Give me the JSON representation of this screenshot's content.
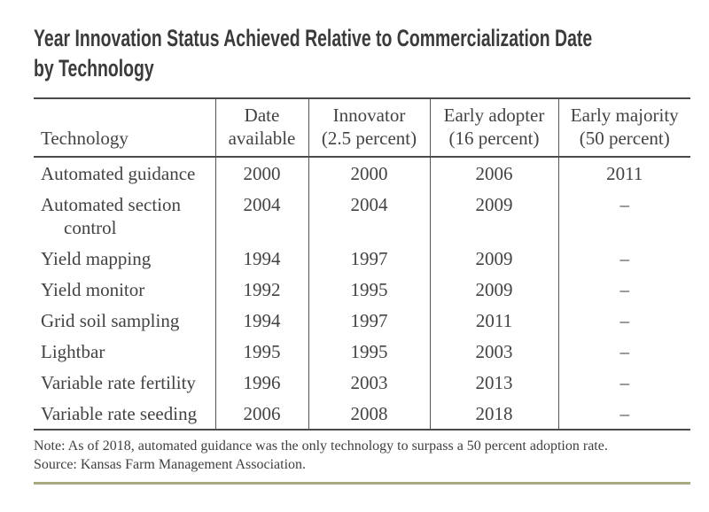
{
  "title": {
    "lines": [
      "Year Innovation Status Achieved Relative to Commercialization Date",
      "by Technology"
    ]
  },
  "table": {
    "columns": [
      {
        "line1": "",
        "line2": "Technology"
      },
      {
        "line1": "Date",
        "line2": "available"
      },
      {
        "line1": "Innovator",
        "line2": "(2.5 percent)"
      },
      {
        "line1": "Early adopter",
        "line2": "(16 percent)"
      },
      {
        "line1": "Early majority",
        "line2": "(50 percent)"
      }
    ],
    "rows": [
      {
        "technology": "Automated guidance",
        "date_available": "2000",
        "innovator": "2000",
        "early_adopter": "2006",
        "early_majority": "2011"
      },
      {
        "technology": "Automated section control",
        "date_available": "2004",
        "innovator": "2004",
        "early_adopter": "2009",
        "early_majority": "–"
      },
      {
        "technology": "Yield mapping",
        "date_available": "1994",
        "innovator": "1997",
        "early_adopter": "2009",
        "early_majority": "–"
      },
      {
        "technology": "Yield monitor",
        "date_available": "1992",
        "innovator": "1995",
        "early_adopter": "2009",
        "early_majority": "–"
      },
      {
        "technology": "Grid soil sampling",
        "date_available": "1994",
        "innovator": "1997",
        "early_adopter": "2011",
        "early_majority": "–"
      },
      {
        "technology": "Lightbar",
        "date_available": "1995",
        "innovator": "1995",
        "early_adopter": "2003",
        "early_majority": "–"
      },
      {
        "technology": "Variable rate fertility",
        "date_available": "1996",
        "innovator": "2003",
        "early_adopter": "2013",
        "early_majority": "–"
      },
      {
        "technology": "Variable rate seeding",
        "date_available": "2006",
        "innovator": "2008",
        "early_adopter": "2018",
        "early_majority": "–"
      }
    ]
  },
  "notes": {
    "note": "Note: As of 2018, automated guidance was the only technology to surpass a 50 percent adoption rate.",
    "source": "Source: Kansas Farm Management Association."
  },
  "colors": {
    "text": "#434343",
    "title_text": "#3b3b3b",
    "table_border": "#4b4b4b",
    "bottom_rule": "#a6aa7e"
  }
}
